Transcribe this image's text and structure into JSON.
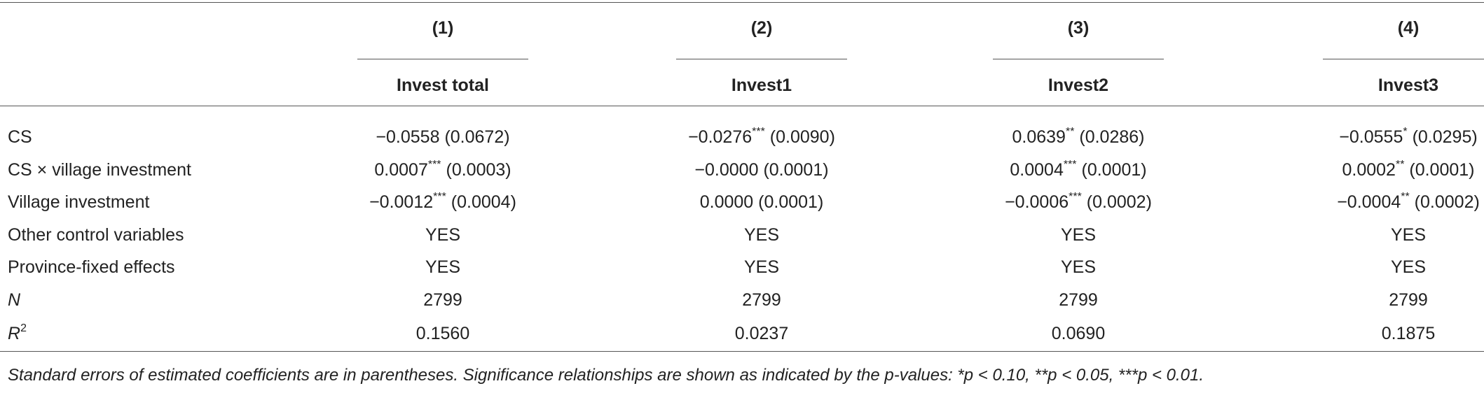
{
  "table": {
    "columns": [
      {
        "number": "(1)",
        "name": "Invest total"
      },
      {
        "number": "(2)",
        "name": "Invest1"
      },
      {
        "number": "(3)",
        "name": "Invest2"
      },
      {
        "number": "(4)",
        "name": "Invest3"
      }
    ],
    "rows": [
      {
        "label": "CS",
        "cells": [
          {
            "coef": "−0.0558",
            "se": "(0.0672)"
          },
          {
            "coef": "−0.0276",
            "stars": "***",
            "se": "(0.0090)"
          },
          {
            "coef": "0.0639",
            "stars": "**",
            "se": "(0.0286)"
          },
          {
            "coef": "−0.0555",
            "stars": "*",
            "se": "(0.0295)"
          }
        ]
      },
      {
        "label": "CS × village investment",
        "cells": [
          {
            "coef": "0.0007",
            "stars": "***",
            "se": "(0.0003)"
          },
          {
            "coef": "−0.0000",
            "se": "(0.0001)"
          },
          {
            "coef": "0.0004",
            "stars": "***",
            "se": "(0.0001)"
          },
          {
            "coef": "0.0002",
            "stars": "**",
            "se": "(0.0001)"
          }
        ]
      },
      {
        "label": "Village investment",
        "cells": [
          {
            "coef": "−0.0012",
            "stars": "***",
            "se": "(0.0004)"
          },
          {
            "coef": "0.0000",
            "se": "(0.0001)"
          },
          {
            "coef": "−0.0006",
            "stars": "***",
            "se": "(0.0002)"
          },
          {
            "coef": "−0.0004",
            "stars": "**",
            "se": "(0.0002)"
          }
        ]
      },
      {
        "label": "Other control variables",
        "cells": [
          {
            "coef": "YES"
          },
          {
            "coef": "YES"
          },
          {
            "coef": "YES"
          },
          {
            "coef": "YES"
          }
        ]
      },
      {
        "label": "Province-fixed effects",
        "cells": [
          {
            "coef": "YES"
          },
          {
            "coef": "YES"
          },
          {
            "coef": "YES"
          },
          {
            "coef": "YES"
          }
        ]
      },
      {
        "label": "N",
        "italic": true,
        "cells": [
          {
            "coef": "2799"
          },
          {
            "coef": "2799"
          },
          {
            "coef": "2799"
          },
          {
            "coef": "2799"
          }
        ]
      },
      {
        "label": "R",
        "italic": true,
        "label_sup": "2",
        "cells": [
          {
            "coef": "0.1560"
          },
          {
            "coef": "0.0237"
          },
          {
            "coef": "0.0690"
          },
          {
            "coef": "0.1875"
          }
        ]
      }
    ]
  },
  "footnote": "Standard errors of estimated coefficients are in parentheses. Significance relationships are shown as indicated by the p-values: *p < 0.10, **p < 0.05, ***p < 0.01."
}
